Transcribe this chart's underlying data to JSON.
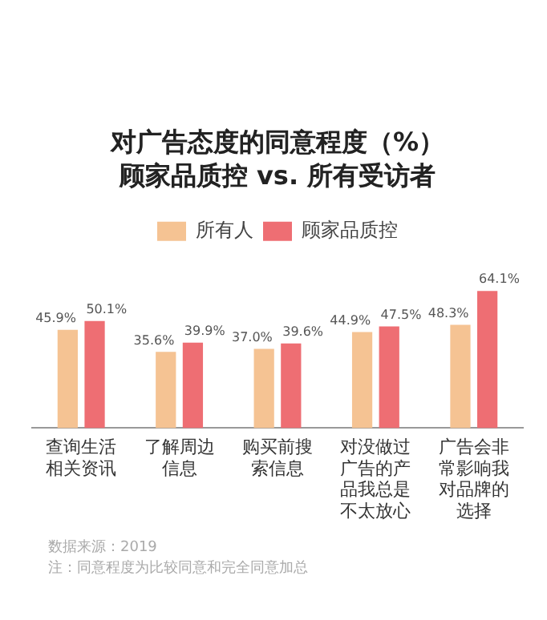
{
  "chart_data": {
    "type": "bar",
    "title": "对广告态度的同意程度（%）",
    "subtitle": "顾家品质控 vs. 所有受访者",
    "categories": [
      "查询生活相关资讯",
      "了解周边信息",
      "购买前搜索信息",
      "对没做过广告的产品我总是不太放心",
      "广告会非常影响我对品牌的选择"
    ],
    "series": [
      {
        "name": "所有人",
        "color": "#f5c393",
        "values": [
          45.9,
          35.6,
          37.0,
          44.9,
          48.3
        ],
        "value_labels": [
          "45.9%",
          "35.6%",
          "37.0%",
          "44.9%",
          "48.3%"
        ]
      },
      {
        "name": "顾家品质控",
        "color": "#ee6e73",
        "values": [
          50.1,
          39.9,
          39.6,
          47.5,
          64.1
        ],
        "value_labels": [
          "50.1%",
          "39.9%",
          "39.6%",
          "47.5%",
          "64.1%"
        ]
      }
    ],
    "legend": "top",
    "grid": false,
    "annotations": [
      "数据来源：2019",
      "注：同意程度为比较同意和完全同意加总"
    ]
  }
}
